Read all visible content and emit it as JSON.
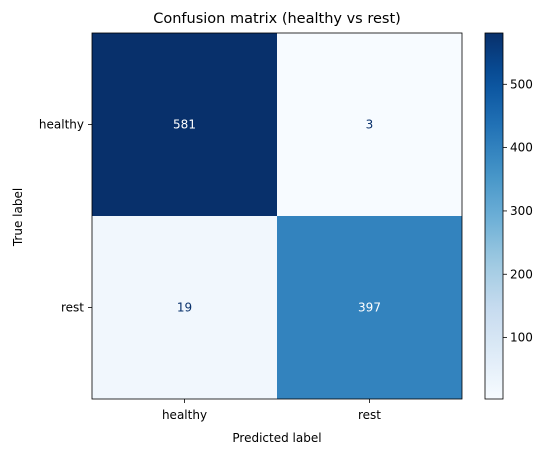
{
  "chart_data": {
    "type": "heatmap",
    "title": "Confusion matrix (healthy vs rest)",
    "xlabel": "Predicted label",
    "ylabel": "True label",
    "x_categories": [
      "healthy",
      "rest"
    ],
    "y_categories": [
      "healthy",
      "rest"
    ],
    "values": [
      [
        581,
        3
      ],
      [
        19,
        397
      ]
    ],
    "colormap": "Blues",
    "colorbar": {
      "range": [
        3,
        581
      ],
      "ticks": [
        100,
        200,
        300,
        400,
        500
      ]
    },
    "text_colors": {
      "light_cell": "#08306b",
      "dark_cell": "#ffffff"
    }
  }
}
